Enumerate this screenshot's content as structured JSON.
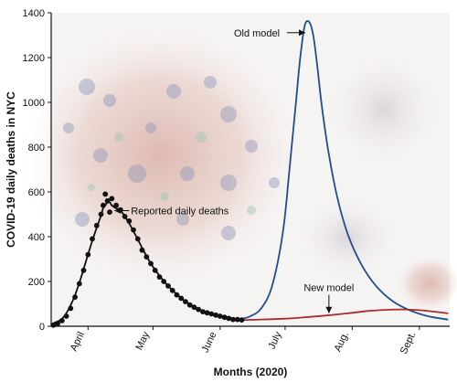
{
  "chart_data": {
    "type": "line",
    "xlabel": "Months (2020)",
    "ylabel": "COVID-19 daily deaths in NYC",
    "ylim": [
      0,
      1400
    ],
    "yticks": [
      0,
      200,
      400,
      600,
      800,
      1000,
      1200,
      1400
    ],
    "xlim": [
      "2020-03-15",
      "2020-09-15"
    ],
    "xticks": [
      {
        "label": "April",
        "date": "2020-04-01"
      },
      {
        "label": "May",
        "date": "2020-05-01"
      },
      {
        "label": "June",
        "date": "2020-06-01"
      },
      {
        "label": "July",
        "date": "2020-07-01"
      },
      {
        "label": "Aug.",
        "date": "2020-08-01"
      },
      {
        "label": "Sept.",
        "date": "2020-09-01"
      }
    ],
    "grid": false,
    "colors": {
      "reported": "#111111",
      "old_model": "#1f4e8c",
      "new_model": "#a82d2d"
    },
    "series": [
      {
        "name": "Reported daily deaths",
        "style": "dots+smooth",
        "x": [
          "2020-03-16",
          "2020-03-18",
          "2020-03-20",
          "2020-03-22",
          "2020-03-24",
          "2020-03-26",
          "2020-03-28",
          "2020-03-30",
          "2020-04-01",
          "2020-04-03",
          "2020-04-05",
          "2020-04-07",
          "2020-04-08",
          "2020-04-09",
          "2020-04-10",
          "2020-04-11",
          "2020-04-12",
          "2020-04-14",
          "2020-04-16",
          "2020-04-18",
          "2020-04-20",
          "2020-04-22",
          "2020-04-24",
          "2020-04-26",
          "2020-04-28",
          "2020-04-30",
          "2020-05-02",
          "2020-05-04",
          "2020-05-06",
          "2020-05-08",
          "2020-05-10",
          "2020-05-12",
          "2020-05-14",
          "2020-05-16",
          "2020-05-18",
          "2020-05-20",
          "2020-05-22",
          "2020-05-24",
          "2020-05-26",
          "2020-05-28",
          "2020-05-30",
          "2020-06-01",
          "2020-06-03",
          "2020-06-05",
          "2020-06-07",
          "2020-06-09",
          "2020-06-11"
        ],
        "values": [
          5,
          12,
          25,
          45,
          80,
          130,
          190,
          250,
          320,
          390,
          450,
          500,
          540,
          590,
          560,
          510,
          570,
          540,
          520,
          490,
          470,
          430,
          390,
          340,
          310,
          280,
          250,
          220,
          200,
          180,
          160,
          140,
          125,
          110,
          95,
          85,
          75,
          65,
          60,
          55,
          50,
          45,
          40,
          35,
          30,
          30,
          28
        ]
      },
      {
        "name": "Old model",
        "style": "line",
        "x": [
          "2020-06-10",
          "2020-06-15",
          "2020-06-20",
          "2020-06-25",
          "2020-06-30",
          "2020-07-03",
          "2020-07-06",
          "2020-07-08",
          "2020-07-10",
          "2020-07-12",
          "2020-07-14",
          "2020-07-16",
          "2020-07-18",
          "2020-07-21",
          "2020-07-25",
          "2020-07-30",
          "2020-08-05",
          "2020-08-12",
          "2020-08-20",
          "2020-08-28",
          "2020-09-05",
          "2020-09-14"
        ],
        "values": [
          30,
          45,
          80,
          180,
          420,
          700,
          1000,
          1200,
          1340,
          1360,
          1300,
          1150,
          980,
          780,
          580,
          410,
          280,
          180,
          110,
          70,
          45,
          30
        ]
      },
      {
        "name": "New model",
        "style": "line",
        "x": [
          "2020-06-10",
          "2020-06-20",
          "2020-07-01",
          "2020-07-10",
          "2020-07-20",
          "2020-07-30",
          "2020-08-08",
          "2020-08-16",
          "2020-08-24",
          "2020-09-01",
          "2020-09-08",
          "2020-09-14"
        ],
        "values": [
          28,
          30,
          34,
          40,
          48,
          58,
          68,
          73,
          75,
          72,
          65,
          58
        ]
      }
    ],
    "annotations": [
      {
        "text": "Old model",
        "series": "Old model"
      },
      {
        "text": "Reported daily deaths",
        "series": "Reported daily deaths"
      },
      {
        "text": "New model",
        "series": "New model"
      }
    ]
  }
}
